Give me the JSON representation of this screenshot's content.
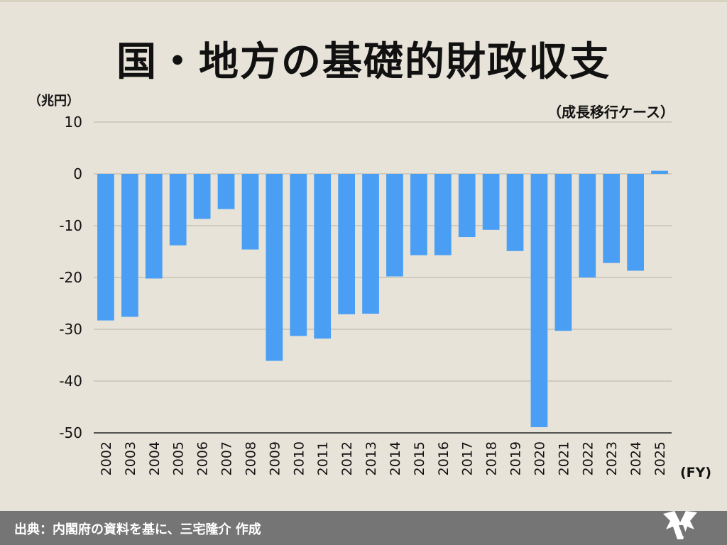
{
  "title": "国・地方の基礎的財政収支",
  "footer": {
    "source": "出典：内閣府の資料を基に、三宅隆介 作成"
  },
  "chart_data": {
    "type": "bar",
    "title": "国・地方の基礎的財政収支",
    "ylabel": "（兆円）",
    "xlabel": "(FY)",
    "annotation": "（成長移行ケース）",
    "ylim": [
      -50,
      10
    ],
    "yticks": [
      10,
      0,
      -10,
      -20,
      -30,
      -40,
      -50
    ],
    "grid": true,
    "bar_color": "#4a9ff5",
    "categories": [
      "2002",
      "2003",
      "2004",
      "2005",
      "2006",
      "2007",
      "2008",
      "2009",
      "2010",
      "2011",
      "2012",
      "2013",
      "2014",
      "2015",
      "2016",
      "2017",
      "2018",
      "2019",
      "2020",
      "2021",
      "2022",
      "2023",
      "2024",
      "2025"
    ],
    "values": [
      -28.3,
      -27.6,
      -20.2,
      -13.8,
      -8.7,
      -6.8,
      -14.6,
      -36.1,
      -31.3,
      -31.8,
      -27.1,
      -27.0,
      -19.8,
      -15.7,
      -15.7,
      -12.2,
      -10.8,
      -14.9,
      -48.9,
      -30.3,
      -20.0,
      -17.2,
      -18.7,
      0.6
    ]
  }
}
